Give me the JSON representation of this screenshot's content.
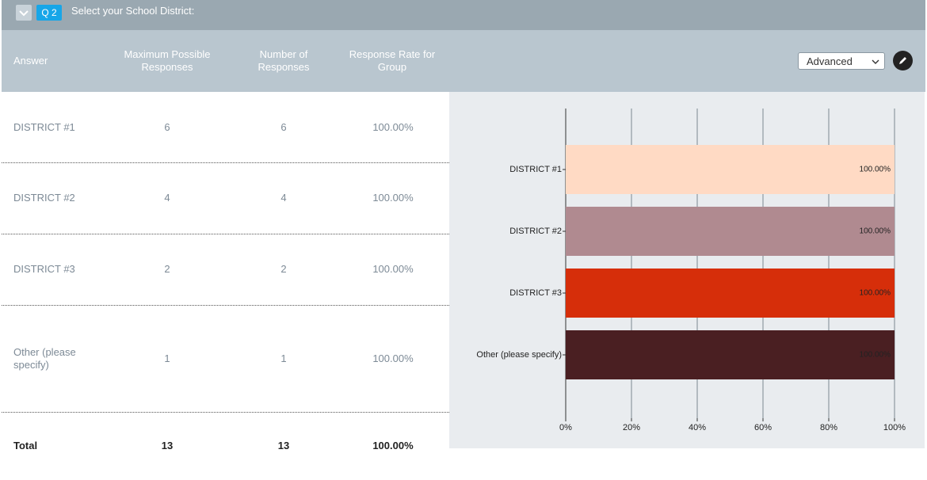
{
  "header": {
    "question_number": "Q 2",
    "title": "Select your School District:"
  },
  "controls": {
    "view": "Advanced"
  },
  "table": {
    "columns": [
      "Answer",
      "Maximum Possible Responses",
      "Number of Responses",
      "Response Rate for Group"
    ],
    "rows": [
      [
        "DISTRICT #1",
        6,
        6,
        "100.00%"
      ],
      [
        "DISTRICT #2",
        4,
        4,
        "100.00%"
      ],
      [
        "DISTRICT #3",
        2,
        2,
        "100.00%"
      ],
      [
        "Other (please specify)",
        1,
        1,
        "100.00%"
      ]
    ],
    "total": [
      "Total",
      13,
      13,
      "100.00%"
    ]
  },
  "chart": {
    "type": "bar",
    "orientation": "horizontal",
    "categories": [
      "DISTRICT #1",
      "DISTRICT #2",
      "DISTRICT #3",
      "Other (please specify)"
    ],
    "values": [
      100,
      100,
      100,
      100
    ],
    "value_labels": [
      "100.00%",
      "100.00%",
      "100.00%",
      "100.00%"
    ],
    "colors": [
      "#ffdac4",
      "#b08a90",
      "#d62e0a",
      "#4a1f22"
    ],
    "xlim": [
      0,
      100
    ],
    "xticks": [
      {
        "value": 0,
        "label": "0%"
      },
      {
        "value": 20,
        "label": "20%"
      },
      {
        "value": 40,
        "label": "40%"
      },
      {
        "value": 60,
        "label": "60%"
      },
      {
        "value": 80,
        "label": "80%"
      },
      {
        "value": 100,
        "label": "100%"
      }
    ],
    "grid": true
  }
}
